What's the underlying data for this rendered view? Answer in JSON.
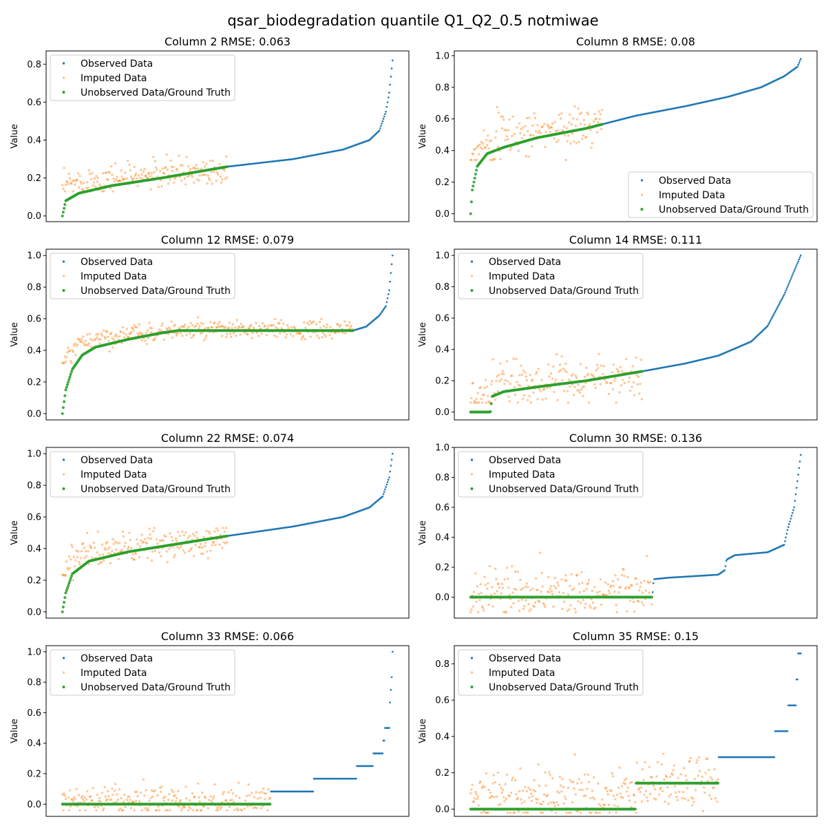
{
  "figure": {
    "title": "qsar_biodegradation quantile Q1_Q2_0.5 notmiwae"
  },
  "colors": {
    "observed": "#1f77b4",
    "imputed": "#ff7f0e",
    "ground_truth": "#2ca02c"
  },
  "legend_entries": [
    "Observed Data",
    "Imputed Data",
    "Unobserved Data/Ground Truth"
  ],
  "chart_data": [
    {
      "type": "scatter",
      "title": "Column 2 RMSE: 0.063",
      "ylabel": "Value",
      "ylim": [
        -0.03,
        0.87
      ],
      "yticks": [
        0.0,
        0.2,
        0.4,
        0.6,
        0.8
      ],
      "ytick_labels": [
        "0.0",
        "0.2",
        "0.4",
        "0.6",
        "0.8"
      ],
      "legend": "top-left",
      "n_points": 400,
      "missing_fraction": 0.5,
      "observed_curve": [
        [
          0.0,
          0.0
        ],
        [
          0.01,
          0.08
        ],
        [
          0.05,
          0.12
        ],
        [
          0.15,
          0.16
        ],
        [
          0.3,
          0.2
        ],
        [
          0.5,
          0.26
        ],
        [
          0.7,
          0.3
        ],
        [
          0.85,
          0.35
        ],
        [
          0.93,
          0.4
        ],
        [
          0.96,
          0.45
        ],
        [
          0.98,
          0.55
        ],
        [
          0.99,
          0.65
        ],
        [
          1.0,
          0.82
        ]
      ],
      "imputed_band": {
        "center": 0.24,
        "spread": 0.04,
        "min": 0.13,
        "max": 0.33
      }
    },
    {
      "type": "scatter",
      "title": "Column 8 RMSE: 0.08",
      "ylabel": "Value",
      "ylim": [
        -0.05,
        1.03
      ],
      "yticks": [
        0.0,
        0.2,
        0.4,
        0.6,
        0.8,
        1.0
      ],
      "ytick_labels": [
        "0.0",
        "0.2",
        "0.4",
        "0.6",
        "0.8",
        "1.0"
      ],
      "legend": "lower-right",
      "n_points": 400,
      "missing_fraction": 0.4,
      "observed_curve": [
        [
          0.0,
          0.0
        ],
        [
          0.005,
          0.15
        ],
        [
          0.02,
          0.3
        ],
        [
          0.05,
          0.38
        ],
        [
          0.1,
          0.42
        ],
        [
          0.2,
          0.48
        ],
        [
          0.35,
          0.54
        ],
        [
          0.5,
          0.62
        ],
        [
          0.65,
          0.68
        ],
        [
          0.78,
          0.74
        ],
        [
          0.88,
          0.8
        ],
        [
          0.95,
          0.87
        ],
        [
          0.99,
          0.93
        ],
        [
          1.0,
          0.98
        ]
      ],
      "imputed_band": {
        "center": 0.56,
        "spread": 0.07,
        "min": 0.34,
        "max": 0.75
      }
    },
    {
      "type": "scatter",
      "title": "Column 12 RMSE: 0.079",
      "ylabel": "Value",
      "ylim": [
        -0.04,
        1.04
      ],
      "yticks": [
        0.0,
        0.2,
        0.4,
        0.6,
        0.8,
        1.0
      ],
      "ytick_labels": [
        "0.0",
        "0.2",
        "0.4",
        "0.6",
        "0.8",
        "1.0"
      ],
      "legend": "top-left",
      "n_points": 400,
      "missing_fraction": 0.88,
      "observed_curve": [
        [
          0.0,
          0.0
        ],
        [
          0.01,
          0.15
        ],
        [
          0.03,
          0.28
        ],
        [
          0.06,
          0.37
        ],
        [
          0.1,
          0.42
        ],
        [
          0.2,
          0.47
        ],
        [
          0.3,
          0.51
        ],
        [
          0.35,
          0.525
        ],
        [
          0.88,
          0.525
        ],
        [
          0.92,
          0.55
        ],
        [
          0.96,
          0.62
        ],
        [
          0.98,
          0.68
        ],
        [
          0.99,
          0.78
        ],
        [
          1.0,
          1.0
        ]
      ],
      "imputed_band": {
        "center": 0.53,
        "spread": 0.03,
        "min": 0.32,
        "max": 0.62
      }
    },
    {
      "type": "scatter",
      "title": "Column 14 RMSE: 0.111",
      "ylabel": "Value",
      "ylim": [
        -0.05,
        1.04
      ],
      "yticks": [
        0.0,
        0.2,
        0.4,
        0.6,
        0.8,
        1.0
      ],
      "ytick_labels": [
        "0.0",
        "0.2",
        "0.4",
        "0.6",
        "0.8",
        "1.0"
      ],
      "legend": "top-left",
      "n_points": 400,
      "missing_fraction": 0.52,
      "observed_curve": [
        [
          0.0,
          0.0
        ],
        [
          0.06,
          0.0
        ],
        [
          0.065,
          0.1
        ],
        [
          0.1,
          0.13
        ],
        [
          0.2,
          0.16
        ],
        [
          0.35,
          0.2
        ],
        [
          0.52,
          0.26
        ],
        [
          0.65,
          0.31
        ],
        [
          0.75,
          0.36
        ],
        [
          0.85,
          0.45
        ],
        [
          0.9,
          0.55
        ],
        [
          0.95,
          0.75
        ],
        [
          1.0,
          1.0
        ]
      ],
      "imputed_band": {
        "center": 0.22,
        "spread": 0.07,
        "min": 0.06,
        "max": 0.56
      }
    },
    {
      "type": "scatter",
      "title": "Column 22 RMSE: 0.074",
      "ylabel": "Value",
      "ylim": [
        -0.04,
        1.04
      ],
      "yticks": [
        0.0,
        0.2,
        0.4,
        0.6,
        0.8,
        1.0
      ],
      "ytick_labels": [
        "0.0",
        "0.2",
        "0.4",
        "0.6",
        "0.8",
        "1.0"
      ],
      "legend": "top-left",
      "n_points": 400,
      "missing_fraction": 0.5,
      "observed_curve": [
        [
          0.0,
          0.0
        ],
        [
          0.01,
          0.12
        ],
        [
          0.03,
          0.24
        ],
        [
          0.08,
          0.32
        ],
        [
          0.2,
          0.38
        ],
        [
          0.35,
          0.43
        ],
        [
          0.5,
          0.48
        ],
        [
          0.7,
          0.54
        ],
        [
          0.85,
          0.6
        ],
        [
          0.93,
          0.66
        ],
        [
          0.97,
          0.73
        ],
        [
          0.99,
          0.85
        ],
        [
          1.0,
          1.0
        ]
      ],
      "imputed_band": {
        "center": 0.43,
        "spread": 0.05,
        "min": 0.2,
        "max": 0.53
      }
    },
    {
      "type": "scatter",
      "title": "Column 30 RMSE: 0.136",
      "ylabel": "Value",
      "ylim": [
        -0.14,
        1.0
      ],
      "yticks": [
        0.0,
        0.2,
        0.4,
        0.6,
        0.8,
        1.0
      ],
      "ytick_labels": [
        "0.0",
        "0.2",
        "0.4",
        "0.6",
        "0.8",
        "1.0"
      ],
      "legend": "top-left",
      "n_points": 400,
      "missing_fraction": 0.55,
      "observed_curve": [
        [
          0.0,
          0.0
        ],
        [
          0.55,
          0.0
        ],
        [
          0.555,
          0.12
        ],
        [
          0.6,
          0.13
        ],
        [
          0.75,
          0.15
        ],
        [
          0.77,
          0.18
        ],
        [
          0.775,
          0.25
        ],
        [
          0.8,
          0.28
        ],
        [
          0.9,
          0.3
        ],
        [
          0.95,
          0.35
        ],
        [
          0.96,
          0.45
        ],
        [
          0.98,
          0.6
        ],
        [
          1.0,
          0.95
        ]
      ],
      "imputed_band": {
        "center": 0.08,
        "spread": 0.08,
        "min": -0.1,
        "max": 0.39
      }
    },
    {
      "type": "scatter",
      "title": "Column 33 RMSE: 0.066",
      "ylabel": "Value",
      "ylim": [
        -0.08,
        1.04
      ],
      "yticks": [
        0.0,
        0.2,
        0.4,
        0.6,
        0.8,
        1.0
      ],
      "ytick_labels": [
        "0.0",
        "0.2",
        "0.4",
        "0.6",
        "0.8",
        "1.0"
      ],
      "legend": "top-left",
      "n_points": 400,
      "missing_fraction": 0.63,
      "steps": [
        [
          0.0,
          0.0
        ],
        [
          0.63,
          0.0
        ],
        [
          0.63,
          0.083
        ],
        [
          0.76,
          0.083
        ],
        [
          0.76,
          0.167
        ],
        [
          0.89,
          0.167
        ],
        [
          0.89,
          0.25
        ],
        [
          0.94,
          0.25
        ],
        [
          0.94,
          0.333
        ],
        [
          0.97,
          0.333
        ],
        [
          0.97,
          0.417
        ],
        [
          0.975,
          0.417
        ],
        [
          0.975,
          0.5
        ],
        [
          0.99,
          0.5
        ],
        [
          0.99,
          0.667
        ],
        [
          0.993,
          0.667
        ],
        [
          0.993,
          0.75
        ],
        [
          0.996,
          0.75
        ],
        [
          0.996,
          0.833
        ],
        [
          0.998,
          0.833
        ],
        [
          0.998,
          1.0
        ],
        [
          1.0,
          1.0
        ]
      ],
      "imputed_band": {
        "center": 0.03,
        "spread": 0.05,
        "min": -0.04,
        "max": 0.28
      }
    },
    {
      "type": "scatter",
      "title": "Column 35 RMSE: 0.15",
      "ylabel": "Value",
      "ylim": [
        -0.04,
        0.9
      ],
      "yticks": [
        0.0,
        0.2,
        0.4,
        0.6,
        0.8
      ],
      "ytick_labels": [
        "0.0",
        "0.2",
        "0.4",
        "0.6",
        "0.8"
      ],
      "legend": "top-left",
      "n_points": 400,
      "missing_fraction": 0.75,
      "steps": [
        [
          0.0,
          0.0
        ],
        [
          0.5,
          0.0
        ],
        [
          0.5,
          0.143
        ],
        [
          0.75,
          0.143
        ],
        [
          0.75,
          0.286
        ],
        [
          0.92,
          0.286
        ],
        [
          0.92,
          0.429
        ],
        [
          0.96,
          0.429
        ],
        [
          0.96,
          0.571
        ],
        [
          0.985,
          0.571
        ],
        [
          0.985,
          0.714
        ],
        [
          0.99,
          0.714
        ],
        [
          0.99,
          0.857
        ],
        [
          1.0,
          0.857
        ]
      ],
      "imputed_band": {
        "center": 0.14,
        "spread": 0.08,
        "min": -0.02,
        "max": 0.5
      }
    }
  ]
}
